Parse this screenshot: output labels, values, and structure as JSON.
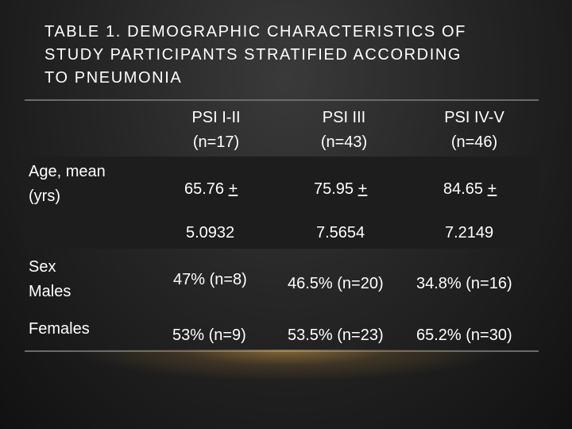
{
  "title": {
    "line1": "TABLE 1. DEMOGRAPHIC CHARACTERISTICS OF",
    "line2": "STUDY PARTICIPANTS STRATIFIED ACCORDING",
    "line3": "TO PNEUMONIA"
  },
  "table": {
    "headers": [
      {
        "line1": "PSI I-II",
        "line2": "(n=17)"
      },
      {
        "line1": "PSI III",
        "line2": "(n=43)"
      },
      {
        "line1": "PSI IV-V",
        "line2": "(n=46)"
      }
    ],
    "rows": {
      "age": {
        "label_line1": "Age, mean",
        "label_line2": "(yrs)",
        "plus_symbol": "+",
        "means": [
          "65.76",
          "75.95",
          "84.65"
        ],
        "sds": [
          "5.0932",
          "7.5654",
          "7.2149"
        ]
      },
      "sex": {
        "label_line1": "Sex",
        "label_line2": "Males",
        "values": [
          "47% (n=8)",
          "46.5% (n=20)",
          "34.8% (n=16)"
        ]
      },
      "females": {
        "label": "Females",
        "values": [
          "53% (n=9)",
          "53.5% (n=23)",
          "65.2% (n=30)"
        ]
      }
    }
  }
}
